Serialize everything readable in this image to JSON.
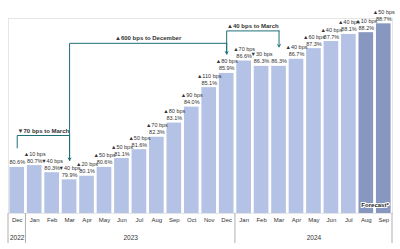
{
  "chart_data": {
    "type": "bar",
    "categories": [
      "Dec",
      "Jan",
      "Feb",
      "Mar",
      "Apr",
      "May",
      "Jun",
      "Jul",
      "Aug",
      "Sep",
      "Oct",
      "Nov",
      "Dec",
      "Jan",
      "Feb",
      "Mar",
      "Apr",
      "May",
      "Jun",
      "Jul",
      "Aug",
      "Sep"
    ],
    "years": [
      "2022",
      "2023",
      "2023",
      "2023",
      "2023",
      "2023",
      "2023",
      "2023",
      "2023",
      "2023",
      "2023",
      "2023",
      "2023",
      "2024",
      "2024",
      "2024",
      "2024",
      "2024",
      "2024",
      "2024",
      "2024",
      "2024"
    ],
    "values": [
      80.6,
      80.7,
      80.3,
      79.9,
      80.1,
      80.6,
      81.1,
      81.6,
      82.3,
      83.1,
      84.0,
      85.1,
      85.9,
      86.6,
      86.3,
      86.3,
      86.7,
      87.3,
      87.7,
      88.1,
      88.2,
      88.7
    ],
    "value_labels": [
      "80.6%",
      "80.7%",
      "80.3%",
      "79.9%",
      "80.1%",
      "80.6%",
      "81.1%",
      "81.6%",
      "82.3%",
      "83.1%",
      "84.0%",
      "85.1%",
      "85.9%",
      "86.6%",
      "86.3%",
      "86.3%",
      "86.7%",
      "87.3%",
      "87.7%",
      "88.1%",
      "88.2%",
      "88.7%"
    ],
    "changes": [
      null,
      10,
      -40,
      -40,
      20,
      50,
      50,
      50,
      70,
      80,
      90,
      110,
      80,
      70,
      -30,
      null,
      40,
      60,
      40,
      40,
      10,
      50
    ],
    "change_labels": [
      null,
      "▲10 bps",
      "▼40 bps",
      "▼40 bps",
      "▲20 bps",
      "▲50 bps",
      "▲50 bps",
      "▲50 bps",
      "▲70 bps",
      "▲80 bps",
      "▲90 bps",
      "▲110 bps",
      "▲80 bps",
      "▲70 bps",
      "▼30 bps",
      null,
      "▲40 bps",
      "▲60 bps",
      "▲40 bps",
      "▲40 bps",
      "▲10 bps",
      "▲50 bps"
    ],
    "colors": [
      "#b4c2e6",
      "#b4c2e6",
      "#b4c2e6",
      "#b4c2e6",
      "#b4c2e6",
      "#b4c2e6",
      "#b4c2e6",
      "#b4c2e6",
      "#b4c2e6",
      "#b4c2e6",
      "#b4c2e6",
      "#b4c2e6",
      "#b4c2e6",
      "#b4c2e6",
      "#b4c2e6",
      "#b4c2e6",
      "#b4c2e6",
      "#b4c2e6",
      "#b4c2e6",
      "#b4c2e6",
      "#8797c0",
      "#8797c0"
    ],
    "ylim": [
      78,
      89
    ],
    "tick_labels": "x",
    "data_labels": true,
    "annotations": [
      {
        "text": "▼70 bps to March",
        "from": 0,
        "to": 3
      },
      {
        "text": "▲600 bps to December",
        "from": 3,
        "to": 12
      },
      {
        "text": "▲40 bps to March",
        "from": 12,
        "to": 15
      }
    ],
    "forecast": {
      "text": "Forecast*",
      "from": 20,
      "to": 21
    }
  }
}
